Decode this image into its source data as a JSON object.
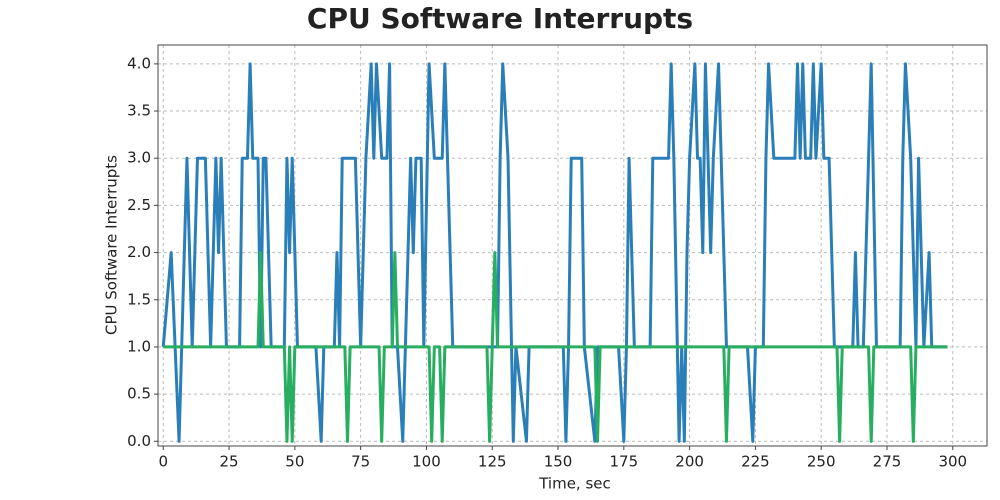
{
  "chart_data": {
    "type": "line",
    "title": "CPU Software Interrupts",
    "x_label": "Time, sec",
    "y_label": "CPU Software Interrupts",
    "xlim": [
      -2,
      313
    ],
    "ylim": [
      -0.05,
      4.2
    ],
    "grid": true,
    "xticks": [
      0,
      25,
      50,
      75,
      100,
      125,
      150,
      175,
      200,
      225,
      250,
      275,
      300
    ],
    "yticks": [
      {
        "value": 0,
        "label": "0.0"
      },
      {
        "value": 0.5,
        "label": "0.5"
      },
      {
        "value": 1,
        "label": "1.0"
      },
      {
        "value": 1.5,
        "label": "1.5"
      },
      {
        "value": 2,
        "label": "2.0"
      },
      {
        "value": 2.5,
        "label": "2.5"
      },
      {
        "value": 3,
        "label": "3.0"
      },
      {
        "value": 3.5,
        "label": "3.5"
      },
      {
        "value": 4,
        "label": "4.0"
      }
    ],
    "series": [
      {
        "color": "#2b7fb8",
        "x": [
          0,
          3,
          6,
          7,
          9,
          11,
          13,
          16,
          18,
          20,
          21,
          22,
          24,
          29,
          30,
          32,
          33,
          34,
          36,
          37,
          38,
          39,
          41,
          46,
          47,
          48,
          49,
          51,
          58,
          60,
          61,
          65,
          66,
          67,
          68,
          73,
          75,
          77,
          79,
          80,
          81,
          83,
          85,
          86,
          87,
          89,
          91,
          92,
          94,
          95,
          96,
          98,
          99,
          101,
          103,
          106,
          107,
          108,
          110,
          127,
          128,
          129,
          131,
          133,
          134,
          138,
          139,
          152,
          153,
          154,
          155,
          159,
          160,
          164,
          165,
          173,
          175,
          176,
          177,
          179,
          185,
          186,
          192,
          193,
          194,
          196,
          197,
          198,
          199,
          200,
          202,
          203,
          204,
          205,
          206,
          207,
          208,
          209,
          211,
          212,
          214,
          222,
          224,
          225,
          228,
          229,
          230,
          232,
          240,
          241,
          242,
          243,
          244,
          246,
          247,
          248,
          250,
          251,
          253,
          255,
          262,
          263,
          264,
          266,
          268,
          269,
          271,
          280,
          281,
          282,
          284,
          285,
          286,
          287,
          288,
          289,
          291,
          292,
          298
        ],
        "values": [
          1,
          2,
          0,
          1,
          3,
          1,
          3,
          3,
          1,
          3,
          2,
          3,
          1,
          1,
          3,
          3,
          4,
          3,
          3,
          1,
          3,
          3,
          1,
          1,
          3,
          2,
          3,
          1,
          1,
          0,
          1,
          1,
          2,
          1,
          3,
          3,
          1,
          3,
          4,
          3,
          4,
          3,
          3,
          4,
          1,
          1,
          0,
          1,
          3,
          2,
          3,
          3,
          1,
          4,
          3,
          3,
          4,
          3,
          1,
          1,
          3,
          4,
          3,
          0,
          1,
          0,
          1,
          1,
          0,
          1,
          3,
          3,
          1,
          0,
          1,
          1,
          0,
          1,
          3,
          1,
          1,
          3,
          3,
          4,
          3,
          0,
          1,
          0,
          2,
          3,
          4,
          3,
          3,
          2,
          4,
          3,
          2,
          3,
          4,
          3,
          1,
          1,
          0,
          1,
          1,
          3,
          4,
          3,
          3,
          4,
          3,
          4,
          3,
          3,
          4,
          3,
          4,
          3,
          3,
          1,
          1,
          2,
          1,
          1,
          3,
          4,
          1,
          1,
          3,
          4,
          3,
          2,
          1,
          3,
          2,
          1,
          2,
          1,
          1
        ]
      },
      {
        "color": "#27ae60",
        "x": [
          0,
          36,
          37,
          38,
          46,
          47,
          48,
          49,
          50,
          69,
          70,
          71,
          82,
          83,
          84,
          87,
          88,
          89,
          101,
          102,
          103,
          105,
          106,
          107,
          123,
          124,
          125,
          126,
          127,
          164,
          165,
          166,
          213,
          214,
          215,
          256,
          257,
          258,
          268,
          269,
          270,
          284,
          285,
          286,
          298
        ],
        "values": [
          1,
          1,
          2,
          1,
          1,
          0,
          1,
          0,
          1,
          1,
          0,
          1,
          1,
          0,
          1,
          1,
          2,
          1,
          1,
          0,
          1,
          1,
          0,
          1,
          1,
          0,
          1,
          2,
          1,
          1,
          0,
          1,
          1,
          0,
          1,
          1,
          0,
          1,
          1,
          0,
          1,
          1,
          0,
          1,
          1
        ]
      }
    ]
  }
}
